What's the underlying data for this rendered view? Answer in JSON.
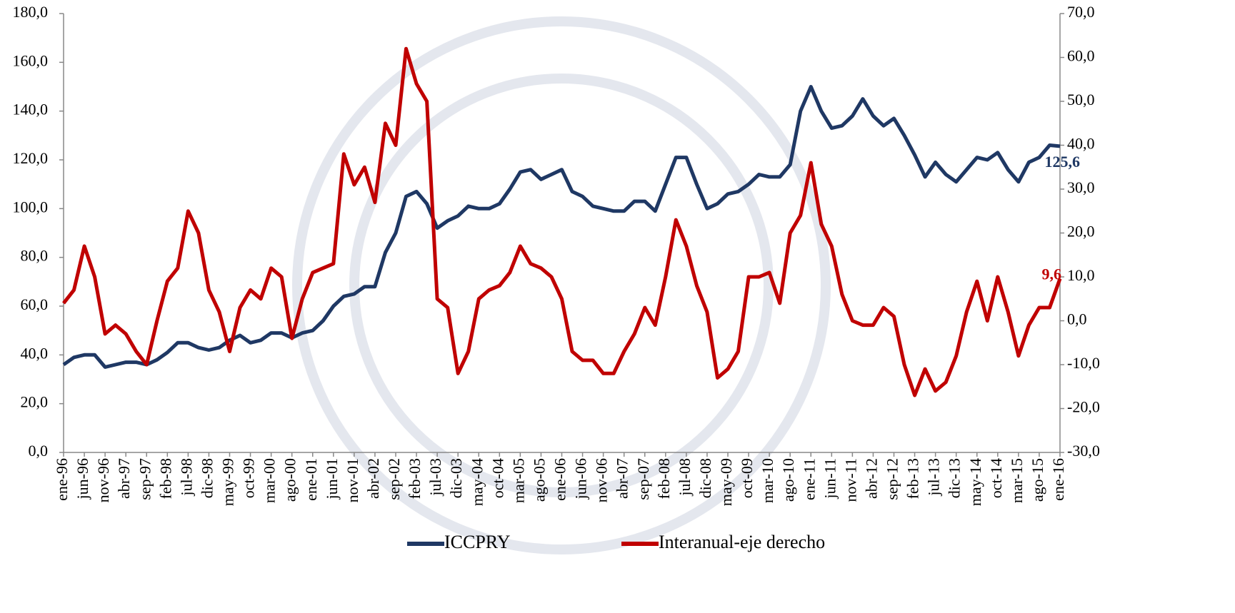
{
  "chart_data": {
    "type": "line",
    "categories": [
      "ene-96",
      null,
      "jun-96",
      null,
      "nov-96",
      null,
      "abr-97",
      null,
      "sep-97",
      null,
      "feb-98",
      null,
      "jul-98",
      null,
      "dic-98",
      null,
      "may-99",
      null,
      "oct-99",
      null,
      "mar-00",
      null,
      "ago-00",
      null,
      "ene-01",
      null,
      "jun-01",
      null,
      "nov-01",
      null,
      "abr-02",
      null,
      "sep-02",
      null,
      "feb-03",
      null,
      "jul-03",
      null,
      "dic-03",
      null,
      "may-04",
      null,
      "oct-04",
      null,
      "mar-05",
      null,
      "ago-05",
      null,
      "ene-06",
      null,
      "jun-06",
      null,
      "nov-06",
      null,
      "abr-07",
      null,
      "sep-07",
      null,
      "feb-08",
      null,
      "jul-08",
      null,
      "dic-08",
      null,
      "may-09",
      null,
      "oct-09",
      null,
      "mar-10",
      null,
      "ago-10",
      null,
      "ene-11",
      null,
      "jun-11",
      null,
      "nov-11",
      null,
      "abr-12",
      null,
      "sep-12",
      null,
      "feb-13",
      null,
      "jul-13",
      null,
      "dic-13",
      null,
      "may-14",
      null,
      "oct-14",
      null,
      "mar-15",
      null,
      "ago-15",
      null,
      "ene-16"
    ],
    "series": [
      {
        "name": "ICCPRY",
        "color": "#1f3864",
        "values": [
          36,
          39,
          40,
          40,
          35,
          36,
          37,
          37,
          36,
          38,
          41,
          45,
          45,
          43,
          42,
          43,
          46,
          48,
          45,
          46,
          49,
          49,
          47,
          49,
          50,
          54,
          60,
          64,
          65,
          68,
          68,
          82,
          90,
          105,
          107,
          102,
          92,
          95,
          97,
          101,
          100,
          100,
          102,
          108,
          115,
          116,
          112,
          114,
          116,
          107,
          105,
          101,
          100,
          99,
          99,
          103,
          103,
          99,
          110,
          121,
          121,
          110,
          100,
          102,
          106,
          107,
          110,
          114,
          113,
          113,
          118,
          140,
          150,
          140,
          133,
          134,
          138,
          145,
          138,
          134,
          137,
          130,
          122,
          113,
          119,
          114,
          111,
          116,
          121,
          120,
          123,
          116,
          111,
          119,
          121,
          126,
          125.6
        ],
        "value_labels": [
          null,
          null,
          null,
          null,
          null,
          null,
          null,
          null,
          null,
          null,
          null,
          null,
          null,
          null,
          null,
          null,
          null,
          null,
          null,
          null,
          null,
          null,
          null,
          null,
          null,
          null,
          null,
          null,
          null,
          null,
          null,
          null,
          null,
          null,
          null,
          null,
          null,
          null,
          null,
          null,
          null,
          null,
          null,
          null,
          null,
          null,
          null,
          null,
          null,
          null,
          null,
          null,
          null,
          null,
          null,
          null,
          null,
          null,
          null,
          null,
          null,
          null,
          null,
          null,
          null,
          null,
          null,
          null,
          null,
          null,
          null,
          null,
          null,
          null,
          null,
          null,
          null,
          null,
          null,
          null,
          null,
          null,
          null,
          null,
          null,
          null,
          null,
          null,
          null,
          null,
          null,
          null,
          null,
          null,
          null,
          null,
          "125,6"
        ]
      },
      {
        "name": "Interanual-eje derecho",
        "color": "#c00000",
        "axis": "y2",
        "values": [
          4,
          7,
          17,
          10,
          -3,
          -1,
          -3,
          -7,
          -10,
          0,
          9,
          12,
          25,
          20,
          7,
          2,
          -7,
          3,
          7,
          5,
          12,
          10,
          -4,
          5,
          11,
          12,
          13,
          38,
          31,
          35,
          27,
          45,
          40,
          62,
          54,
          50,
          5,
          3,
          -12,
          -7,
          5,
          7,
          8,
          11,
          17,
          13,
          12,
          10,
          5,
          -7,
          -9,
          -9,
          -12,
          -12,
          -7,
          -3,
          3,
          -1,
          10,
          23,
          17,
          8,
          2,
          -13,
          -11,
          -7,
          10,
          10,
          11,
          4,
          20,
          24,
          36,
          22,
          17,
          6,
          0,
          -1,
          -1,
          3,
          1,
          -10,
          -17,
          -11,
          -16,
          -14,
          -8,
          2,
          9,
          0,
          10,
          2,
          -8,
          -1,
          3,
          3,
          9.6
        ],
        "value_labels": [
          null,
          null,
          null,
          null,
          null,
          null,
          null,
          null,
          null,
          null,
          null,
          null,
          null,
          null,
          null,
          null,
          null,
          null,
          null,
          null,
          null,
          null,
          null,
          null,
          null,
          null,
          null,
          null,
          null,
          null,
          null,
          null,
          null,
          null,
          null,
          null,
          null,
          null,
          null,
          null,
          null,
          null,
          null,
          null,
          null,
          null,
          null,
          null,
          null,
          null,
          null,
          null,
          null,
          null,
          null,
          null,
          null,
          null,
          null,
          null,
          null,
          null,
          null,
          null,
          null,
          null,
          null,
          null,
          null,
          null,
          null,
          null,
          null,
          null,
          null,
          null,
          null,
          null,
          null,
          null,
          null,
          null,
          null,
          null,
          null,
          null,
          null,
          null,
          null,
          null,
          null,
          null,
          null,
          null,
          null,
          null,
          "9,6"
        ]
      }
    ],
    "ylim": [
      0,
      180
    ],
    "yticks": [
      {
        "value": 0,
        "label": "0,0"
      },
      {
        "value": 20,
        "label": "20,0"
      },
      {
        "value": 40,
        "label": "40,0"
      },
      {
        "value": 60,
        "label": "60,0"
      },
      {
        "value": 80,
        "label": "80,0"
      },
      {
        "value": 100,
        "label": "100,0"
      },
      {
        "value": 120,
        "label": "120,0"
      },
      {
        "value": 140,
        "label": "140,0"
      },
      {
        "value": 160,
        "label": "160,0"
      },
      {
        "value": 180,
        "label": "180,0"
      }
    ],
    "y2lim": [
      -30,
      70
    ],
    "y2ticks": [
      {
        "value": -30,
        "label": "-30,0"
      },
      {
        "value": -20,
        "label": "-20,0"
      },
      {
        "value": -10,
        "label": "-10,0"
      },
      {
        "value": 0,
        "label": "0,0"
      },
      {
        "value": 10,
        "label": "10,0"
      },
      {
        "value": 20,
        "label": "20,0"
      },
      {
        "value": 30,
        "label": "30,0"
      },
      {
        "value": 40,
        "label": "40,0"
      },
      {
        "value": 50,
        "label": "50,0"
      },
      {
        "value": 60,
        "label": "60,0"
      },
      {
        "value": 70,
        "label": "70,0"
      }
    ],
    "legend": "bottom"
  }
}
